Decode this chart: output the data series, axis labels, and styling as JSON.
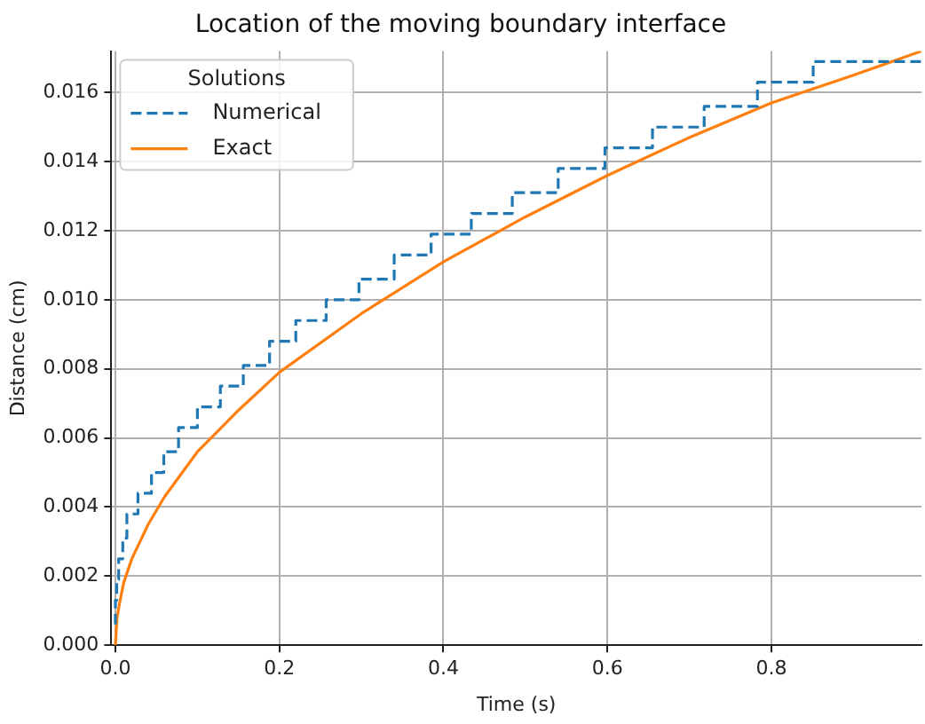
{
  "chart_data": {
    "type": "line",
    "title": "Location of the moving boundary interface",
    "xlabel": "Time (s)",
    "ylabel": "Distance (cm)",
    "legend_title": "Solutions",
    "legend": "top left",
    "grid": true,
    "marker": "none",
    "xlim": [
      -0.005,
      0.983
    ],
    "ylim": [
      0,
      0.0172
    ],
    "xticks": [
      {
        "value": 0,
        "label": "0.0"
      },
      {
        "value": 0.2,
        "label": "0.2"
      },
      {
        "value": 0.4,
        "label": "0.4"
      },
      {
        "value": 0.6,
        "label": "0.6"
      },
      {
        "value": 0.8,
        "label": "0.8"
      }
    ],
    "yticks": [
      {
        "value": 0,
        "label": "0.000"
      },
      {
        "value": 0.002,
        "label": "0.002"
      },
      {
        "value": 0.004,
        "label": "0.004"
      },
      {
        "value": 0.006,
        "label": "0.006"
      },
      {
        "value": 0.008,
        "label": "0.008"
      },
      {
        "value": 0.01,
        "label": "0.010"
      },
      {
        "value": 0.012,
        "label": "0.012"
      },
      {
        "value": 0.014,
        "label": "0.014"
      },
      {
        "value": 0.016,
        "label": "0.016"
      }
    ],
    "series": [
      {
        "name": "Numerical",
        "type": "step",
        "color": "#1f77b4",
        "line_style": "dashed",
        "x": [
          0,
          0.0016,
          0.004,
          0.009,
          0.014,
          0.0275,
          0.044,
          0.059,
          0.077,
          0.1,
          0.128,
          0.156,
          0.188,
          0.22,
          0.257,
          0.297,
          0.34,
          0.385,
          0.434,
          0.484,
          0.54,
          0.597,
          0.655,
          0.718,
          0.783,
          0.851,
          0.923,
          0.983
        ],
        "values": [
          0.0006,
          0.0013,
          0.0019,
          0.0025,
          0.0031,
          0.0038,
          0.0044,
          0.005,
          0.0056,
          0.0063,
          0.0069,
          0.0075,
          0.0081,
          0.0088,
          0.0094,
          0.01,
          0.0106,
          0.0113,
          0.0119,
          0.0125,
          0.0131,
          0.0138,
          0.0144,
          0.015,
          0.0156,
          0.0163,
          0.0169,
          0.0169
        ]
      },
      {
        "name": "Exact",
        "type": "line",
        "color": "#ff7f0e",
        "line_style": "solid",
        "x": [
          0,
          0.002,
          0.005,
          0.01,
          0.02,
          0.04,
          0.06,
          0.1,
          0.15,
          0.2,
          0.3,
          0.4,
          0.5,
          0.6,
          0.7,
          0.8,
          0.9,
          0.983
        ],
        "values": [
          0,
          0.0008,
          0.0012,
          0.0018,
          0.0025,
          0.0035,
          0.0043,
          0.0056,
          0.0068,
          0.0079,
          0.0096,
          0.0111,
          0.0124,
          0.0136,
          0.0147,
          0.0157,
          0.0165,
          0.0172
        ]
      }
    ]
  }
}
